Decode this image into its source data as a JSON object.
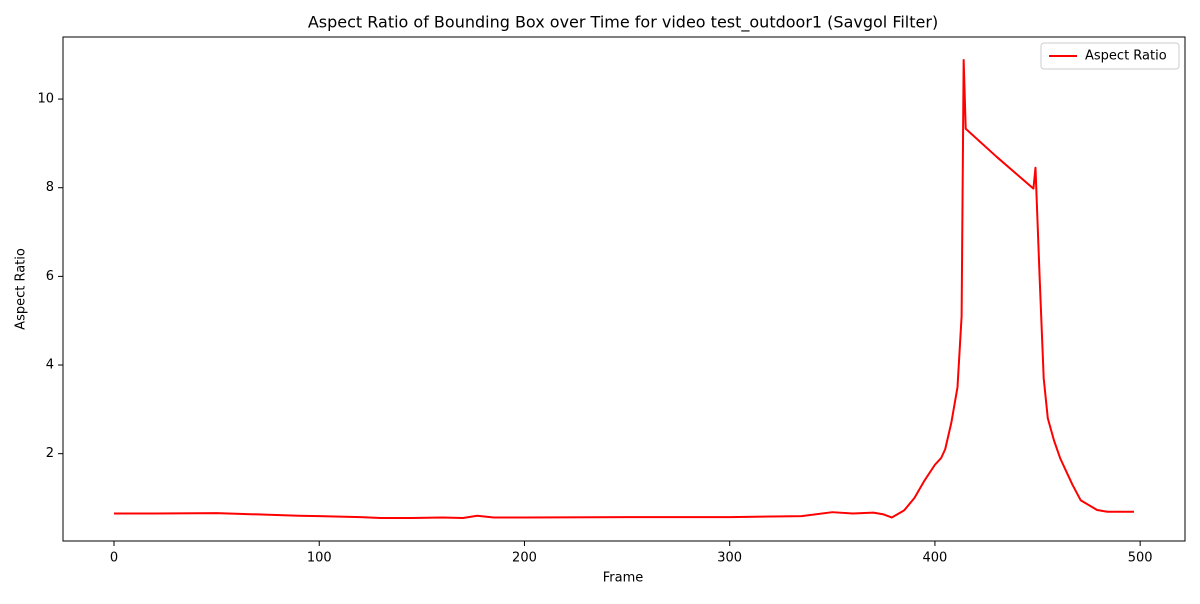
{
  "chart_data": {
    "type": "line",
    "title": "Aspect Ratio of Bounding Box over Time for video test_outdoor1 (Savgol Filter)",
    "xlabel": "Frame",
    "ylabel": "Aspect Ratio",
    "x": [
      0,
      20,
      50,
      70,
      90,
      100,
      120,
      130,
      145,
      160,
      170,
      177,
      185,
      200,
      250,
      300,
      335,
      350,
      360,
      370,
      375,
      379,
      385,
      390,
      395,
      400,
      403,
      405,
      408,
      411,
      413,
      414,
      415,
      430,
      448,
      449,
      451,
      453,
      455,
      458,
      461,
      464,
      467,
      471,
      479,
      484,
      497
    ],
    "series": [
      {
        "name": "Aspect Ratio",
        "color": "#ff0000",
        "values": [
          0.65,
          0.65,
          0.66,
          0.63,
          0.6,
          0.59,
          0.57,
          0.55,
          0.55,
          0.56,
          0.55,
          0.6,
          0.56,
          0.56,
          0.57,
          0.57,
          0.59,
          0.68,
          0.65,
          0.67,
          0.63,
          0.56,
          0.72,
          1.0,
          1.4,
          1.75,
          1.9,
          2.1,
          2.7,
          3.5,
          5.1,
          10.88,
          9.33,
          8.7,
          7.98,
          8.45,
          6.0,
          3.7,
          2.8,
          2.3,
          1.9,
          1.6,
          1.3,
          0.95,
          0.73,
          0.69,
          0.69
        ]
      }
    ],
    "xlim": [
      -24.85,
      521.85
    ],
    "xticks": [
      0,
      100,
      200,
      300,
      400,
      500
    ],
    "ylim": [
      0.03,
      11.4
    ],
    "yticks": [
      2,
      4,
      6,
      8,
      10
    ],
    "legend": "upper right"
  }
}
